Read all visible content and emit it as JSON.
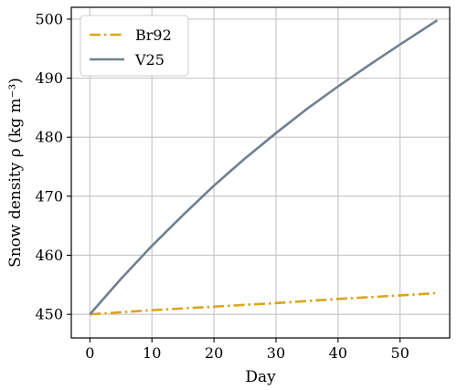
{
  "chart_data": {
    "type": "line",
    "xlabel": "Day",
    "ylabel": "Snow density ρ (kg m⁻³)",
    "xlim": [
      -3,
      58
    ],
    "ylim": [
      446,
      502
    ],
    "xticks": [
      0,
      10,
      20,
      30,
      40,
      50
    ],
    "yticks": [
      450,
      460,
      470,
      480,
      490,
      500
    ],
    "grid": true,
    "legend_position": "top-left",
    "series": [
      {
        "name": "Br92",
        "color": "#DAA520",
        "style": "dash-dot",
        "x": [
          0,
          10,
          20,
          30,
          40,
          50,
          56
        ],
        "y": [
          450.0,
          450.7,
          451.3,
          451.9,
          452.6,
          453.2,
          453.6
        ]
      },
      {
        "name": "V25",
        "color": "#708090",
        "style": "solid",
        "x": [
          0,
          5,
          10,
          15,
          20,
          25,
          30,
          35,
          40,
          45,
          50,
          56
        ],
        "y": [
          450.0,
          456.0,
          461.6,
          466.8,
          471.8,
          476.4,
          480.7,
          484.8,
          488.6,
          492.2,
          495.7,
          499.8
        ]
      }
    ]
  }
}
